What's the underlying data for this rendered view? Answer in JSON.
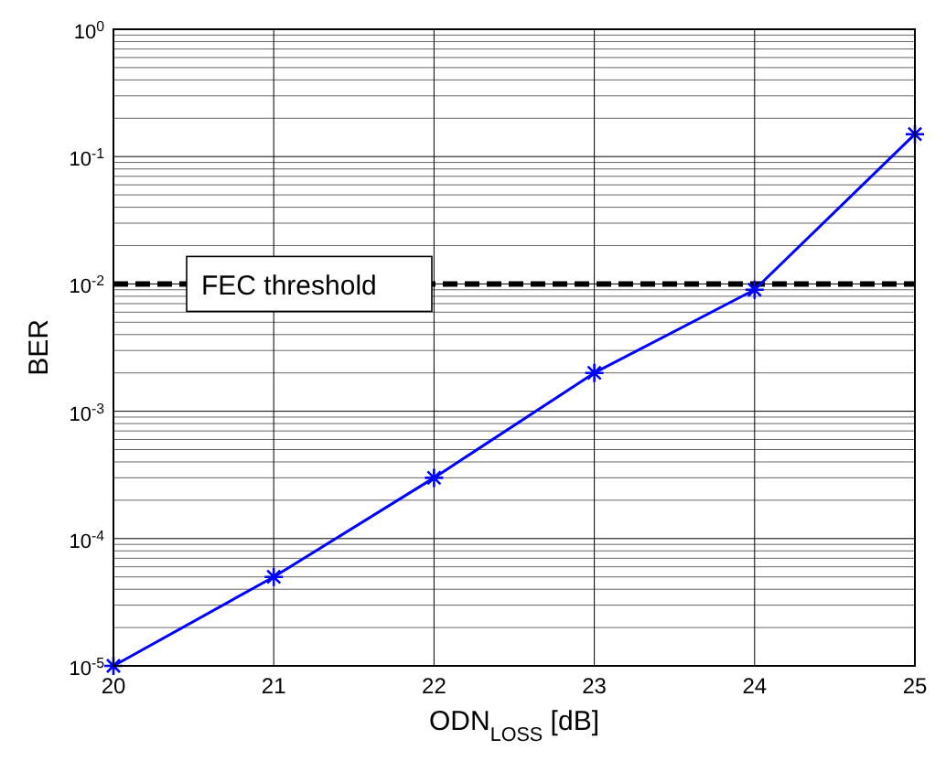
{
  "chart_data": {
    "type": "line",
    "xlabel": "ODN$_{LOSS}$ [dB]",
    "ylabel": "BER",
    "x": [
      20,
      21,
      22,
      23,
      24,
      25
    ],
    "series": [
      {
        "color": "#0000ff",
        "values": [
          1e-05,
          5e-05,
          0.0003,
          0.002,
          0.009,
          0.15
        ]
      }
    ],
    "xlim": [
      20,
      25
    ],
    "xticks": [
      20,
      21,
      22,
      23,
      24,
      25
    ],
    "ylim": [
      1e-05,
      1
    ],
    "yticks": [
      {
        "value": 1e-05,
        "label": "10$^{-5}$"
      },
      {
        "value": 0.0001,
        "label": "10$^{-4}$"
      },
      {
        "value": 0.001,
        "label": "10$^{-3}$"
      },
      {
        "value": 0.01,
        "label": "10$^{-2}$"
      },
      {
        "value": 0.1,
        "label": "10$^{-1}$"
      },
      {
        "value": 1,
        "label": "10$^{0}$"
      }
    ],
    "log": "y",
    "grid": true,
    "marker": "cross",
    "line_style": "solid",
    "ref_lines": [
      {
        "axis": "y",
        "value": 0.01,
        "label": "FEC threshold",
        "color": "#000000",
        "line_style": "dashed"
      }
    ]
  }
}
